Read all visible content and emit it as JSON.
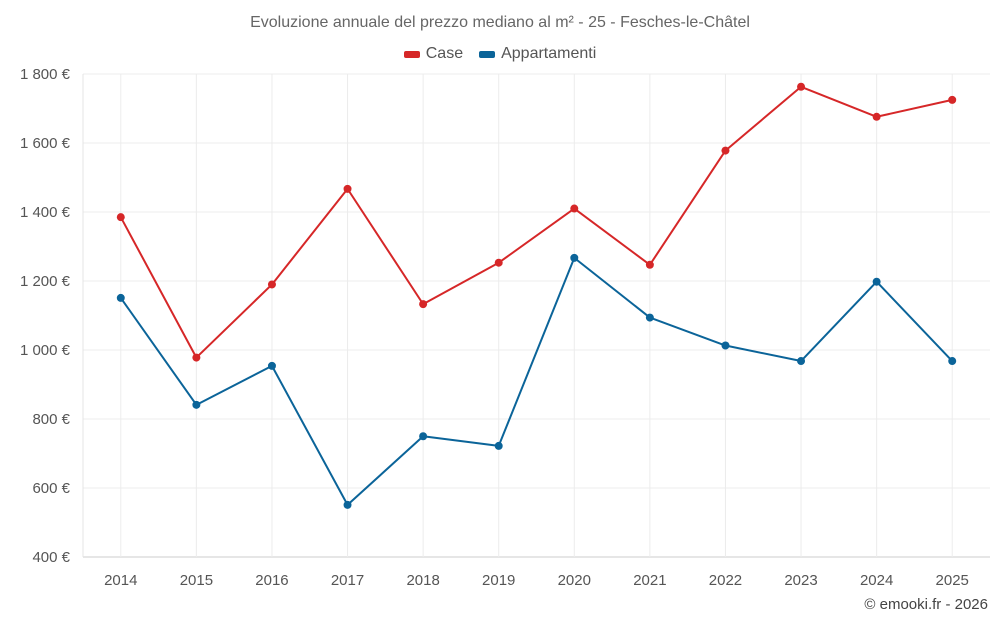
{
  "chart_data": {
    "type": "line",
    "title": "Evoluzione annuale del prezzo mediano al m² - 25 - Fesches-le-Châtel",
    "categories": [
      "2014",
      "2015",
      "2016",
      "2017",
      "2018",
      "2019",
      "2020",
      "2021",
      "2022",
      "2023",
      "2024",
      "2025"
    ],
    "series": [
      {
        "name": "Case",
        "color": "#d62728",
        "values": [
          1385,
          978,
          1190,
          1467,
          1133,
          1253,
          1410,
          1247,
          1578,
          1763,
          1676,
          1725
        ]
      },
      {
        "name": "Appartamenti",
        "color": "#0b6499",
        "values": [
          1151,
          841,
          954,
          551,
          750,
          722,
          1267,
          1094,
          1013,
          968,
          1198,
          968
        ]
      }
    ],
    "y_ticks": [
      "400 €",
      "600 €",
      "800 €",
      "1 000 €",
      "1 200 €",
      "1 400 €",
      "1 600 €",
      "1 800 €"
    ],
    "ylim": [
      400,
      1800
    ],
    "xlabel": "",
    "ylabel": "",
    "grid": true,
    "legend_position": "top-center"
  },
  "credit": "© emooki.fr - 2026"
}
